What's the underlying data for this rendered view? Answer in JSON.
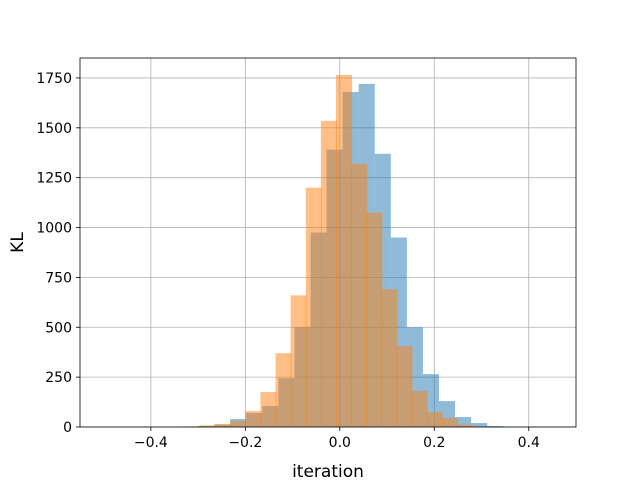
{
  "chart_data": {
    "type": "bar",
    "subtype": "histogram-overlay",
    "title": "",
    "xlabel": "iteration",
    "ylabel": "KL",
    "xlim": [
      -0.55,
      0.5
    ],
    "ylim": [
      0,
      1850
    ],
    "xticks": [
      -0.4,
      -0.2,
      0.0,
      0.2,
      0.4
    ],
    "xtick_labels": [
      "−0.4",
      "−0.2",
      "0.0",
      "0.2",
      "0.4"
    ],
    "yticks": [
      0,
      250,
      500,
      750,
      1000,
      1250,
      1500,
      1750
    ],
    "ytick_labels": [
      "0",
      "250",
      "500",
      "750",
      "1000",
      "1250",
      "1500",
      "1750"
    ],
    "grid": true,
    "bin_width": 0.034,
    "series": [
      {
        "color": "#1f77b4",
        "opacity": 0.5,
        "bins_start": [
          -0.334,
          -0.3,
          -0.266,
          -0.232,
          -0.198,
          -0.164,
          -0.13,
          -0.096,
          -0.062,
          -0.028,
          0.006,
          0.04,
          0.074,
          0.108,
          0.142,
          0.176,
          0.21,
          0.244,
          0.278,
          0.312
        ],
        "values": [
          2,
          5,
          12,
          40,
          70,
          105,
          245,
          500,
          975,
          1390,
          1680,
          1720,
          1370,
          950,
          500,
          265,
          130,
          50,
          20,
          5
        ]
      },
      {
        "color": "#ff7f0e",
        "opacity": 0.5,
        "bins_start": [
          -0.328,
          -0.296,
          -0.264,
          -0.232,
          -0.2,
          -0.168,
          -0.136,
          -0.104,
          -0.072,
          -0.04,
          -0.008,
          0.024,
          0.056,
          0.088,
          0.12,
          0.152,
          0.184,
          0.216,
          0.248
        ],
        "values": [
          3,
          8,
          15,
          30,
          80,
          175,
          370,
          660,
          1200,
          1535,
          1765,
          1320,
          1075,
          690,
          405,
          180,
          75,
          45,
          12
        ]
      }
    ]
  }
}
